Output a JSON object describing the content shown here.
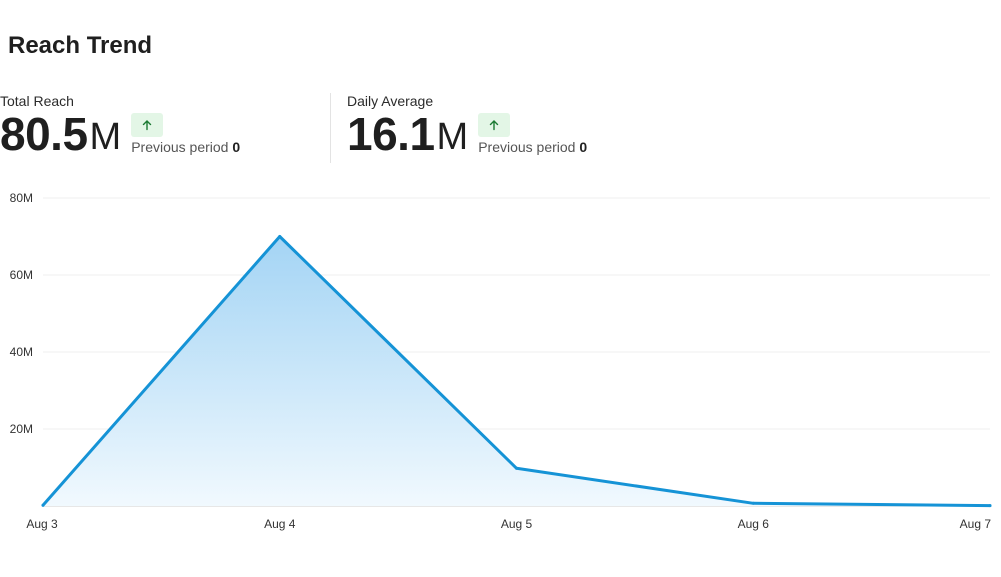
{
  "header": {
    "title": "Reach Trend"
  },
  "metrics": [
    {
      "label": "Total Reach",
      "value": "80.5",
      "unit": "M",
      "trend": "up",
      "prev_label": "Previous period",
      "prev_value": "0"
    },
    {
      "label": "Daily Average",
      "value": "16.1",
      "unit": "M",
      "trend": "up",
      "prev_label": "Previous period",
      "prev_value": "0"
    }
  ],
  "colors": {
    "line": "#1593d6",
    "fill_top": "#9fd2f4",
    "fill_bottom": "#f1f9fe",
    "grid": "#efefef",
    "trend_badge": "#e3f6e6",
    "trend_arrow": "#1a7a32"
  },
  "chart_data": {
    "type": "area",
    "title": "",
    "xlabel": "",
    "ylabel": "",
    "categories": [
      "Aug 3",
      "Aug 4",
      "Aug 5",
      "Aug 6",
      "Aug 7"
    ],
    "series": [
      {
        "values": [
          0.2,
          70,
          9.8,
          0.7,
          0.1
        ]
      }
    ],
    "ylim": [
      0,
      80
    ],
    "yticks": [
      {
        "value": 20,
        "label": "20M"
      },
      {
        "value": 40,
        "label": "40M"
      },
      {
        "value": 60,
        "label": "60M"
      },
      {
        "value": 80,
        "label": "80M"
      }
    ],
    "grid": true,
    "legend": "none"
  }
}
